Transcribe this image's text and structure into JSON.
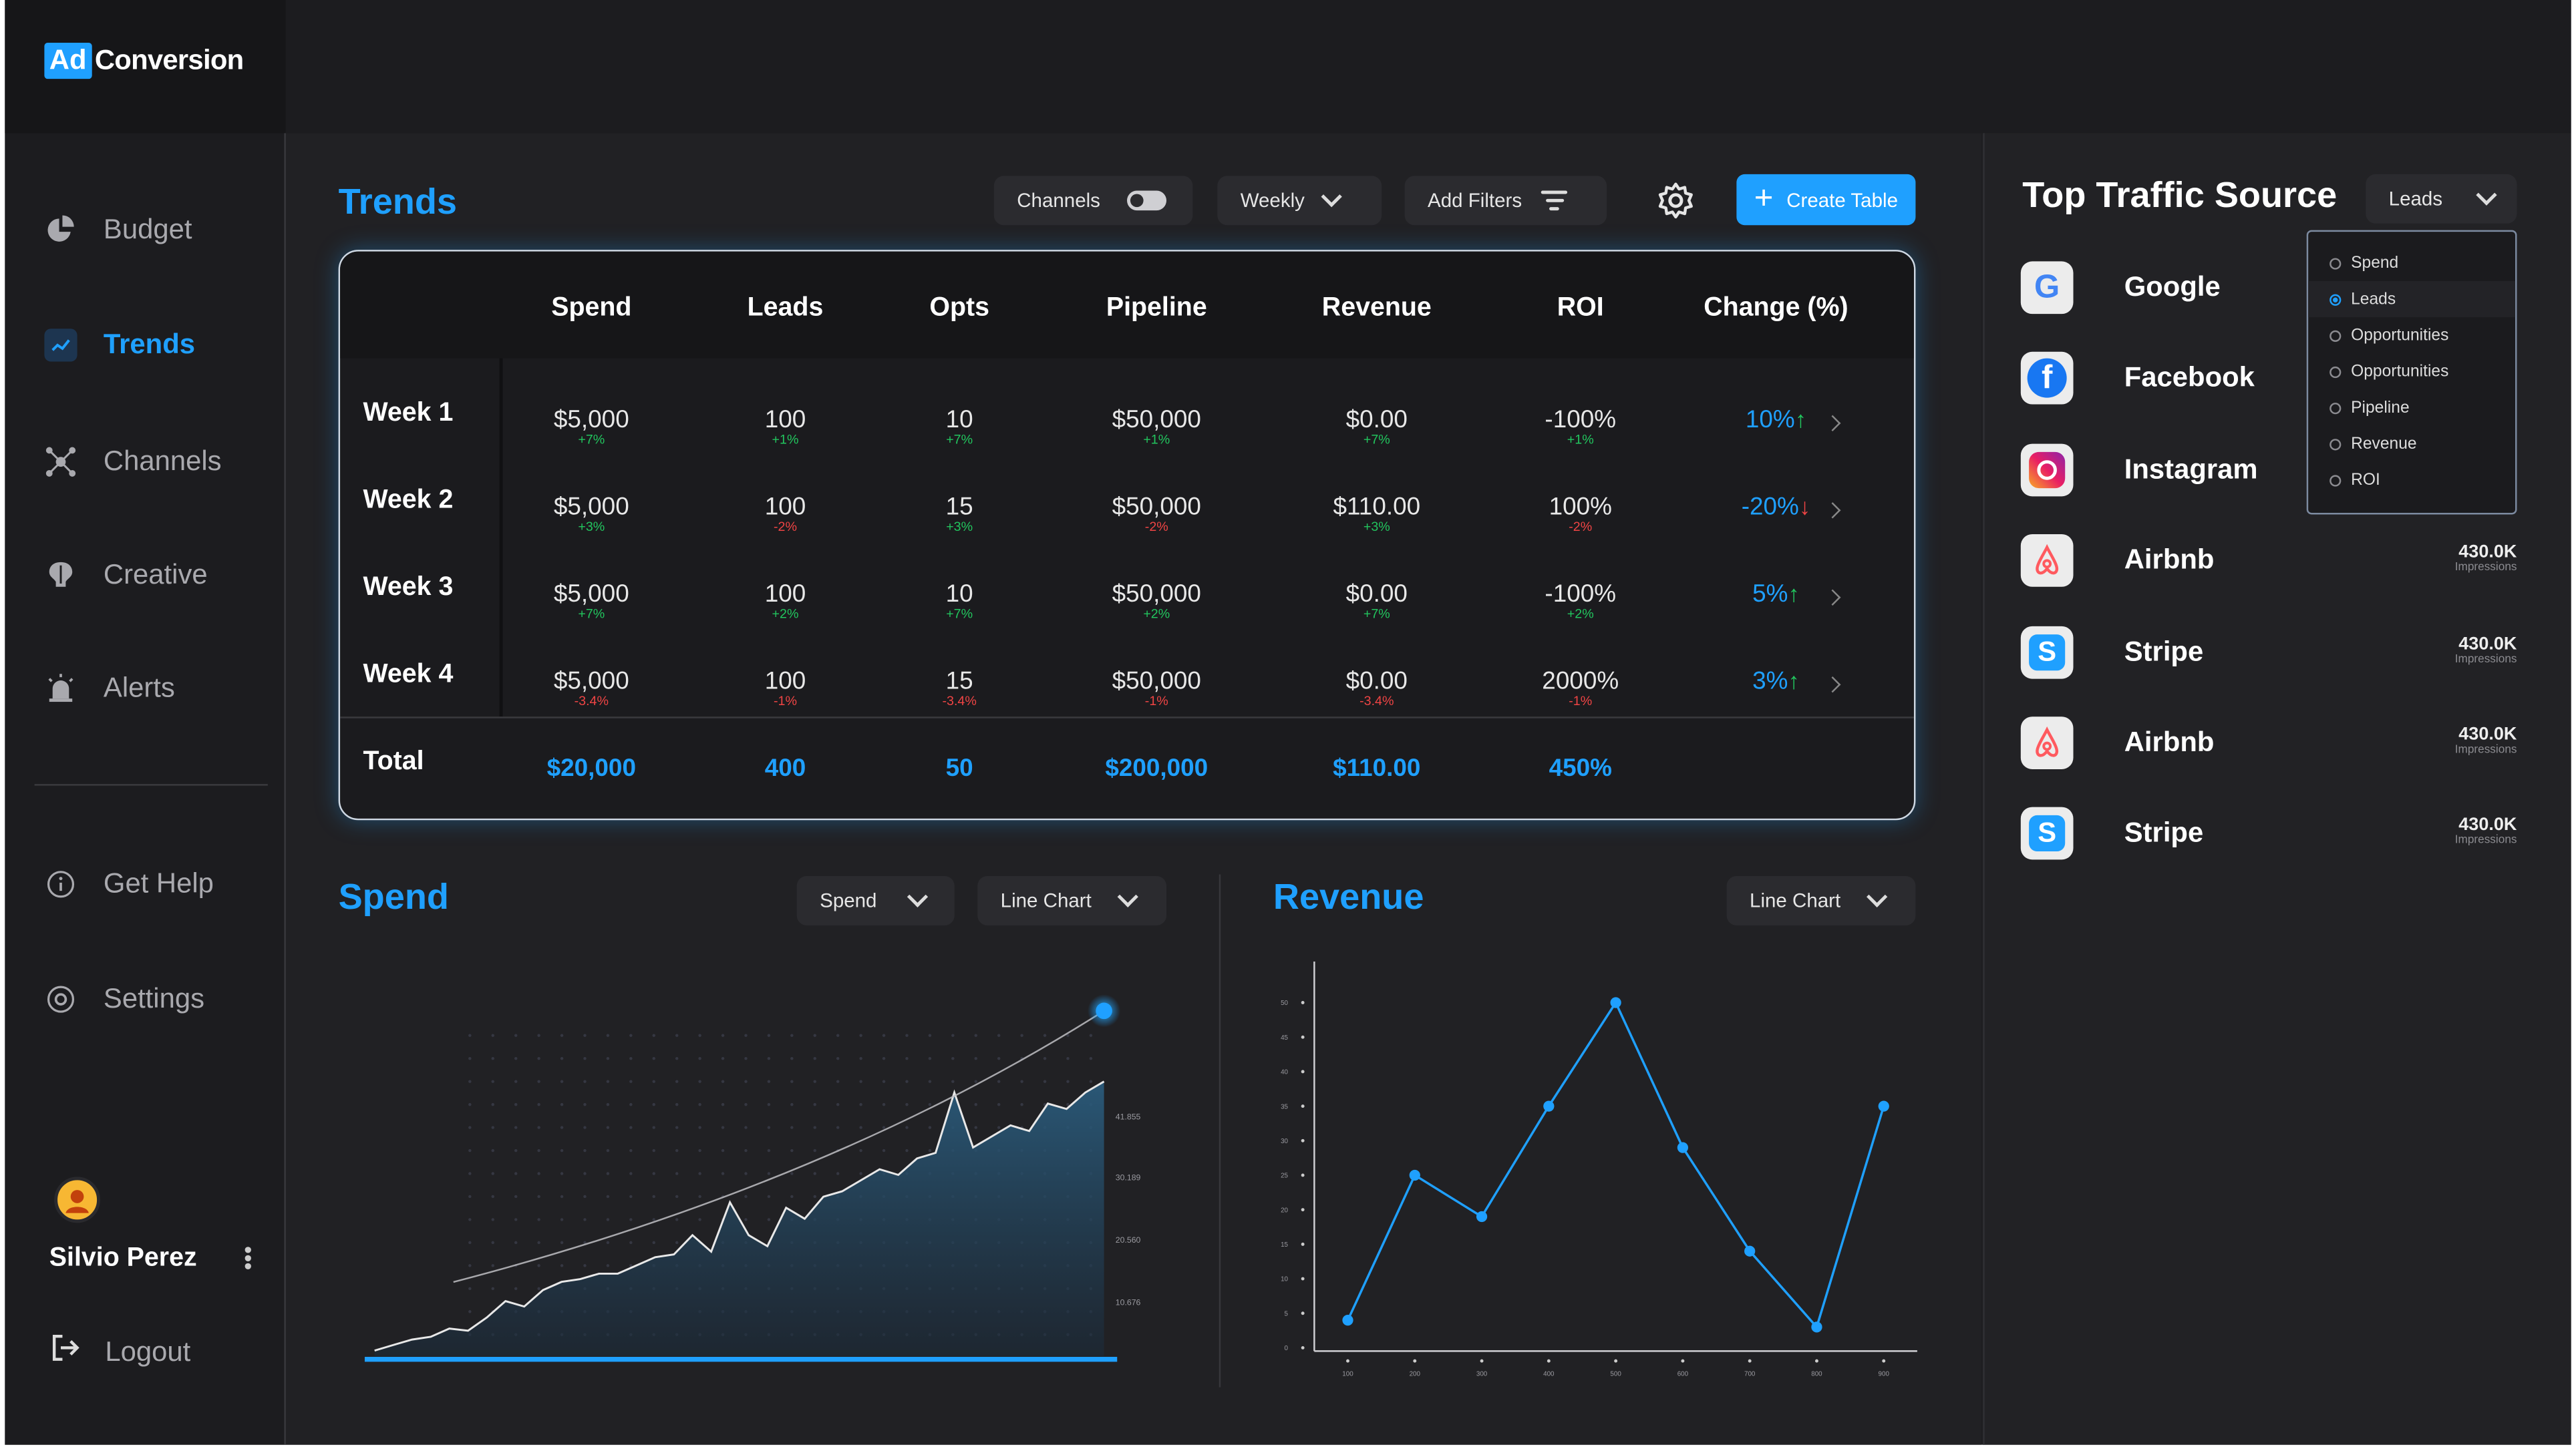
{
  "app": {
    "logo_ad": "Ad",
    "logo_name": "Conversion"
  },
  "sidebar": {
    "items": [
      {
        "label": "Budget",
        "icon": "pie-chart-icon"
      },
      {
        "label": "Trends",
        "icon": "trend-icon",
        "active": true
      },
      {
        "label": "Channels",
        "icon": "channels-icon"
      },
      {
        "label": "Creative",
        "icon": "brain-icon"
      },
      {
        "label": "Alerts",
        "icon": "siren-icon"
      }
    ],
    "help": "Get Help",
    "settings": "Settings",
    "user_name": "Silvio Perez",
    "logout": "Logout"
  },
  "trends": {
    "title": "Trends",
    "channels_label": "Channels",
    "period": "Weekly",
    "add_filters": "Add Filters",
    "create_table": "Create Table",
    "columns": [
      "Spend",
      "Leads",
      "Opts",
      "Pipeline",
      "Revenue",
      "ROI",
      "Change (%)"
    ],
    "rows": [
      {
        "label": "Week 1",
        "cells": [
          {
            "v": "$5,000",
            "d": "+7%",
            "up": true
          },
          {
            "v": "100",
            "d": "+1%",
            "up": true
          },
          {
            "v": "10",
            "d": "+7%",
            "up": true
          },
          {
            "v": "$50,000",
            "d": "+1%",
            "up": true
          },
          {
            "v": "$0.00",
            "d": "+7%",
            "up": true
          },
          {
            "v": "-100%",
            "d": "+1%",
            "up": true
          }
        ],
        "change": "10%",
        "change_up": true
      },
      {
        "label": "Week 2",
        "cells": [
          {
            "v": "$5,000",
            "d": "+3%",
            "up": true
          },
          {
            "v": "100",
            "d": "-2%",
            "up": false
          },
          {
            "v": "15",
            "d": "+3%",
            "up": true
          },
          {
            "v": "$50,000",
            "d": "-2%",
            "up": false
          },
          {
            "v": "$110.00",
            "d": "+3%",
            "up": true
          },
          {
            "v": "100%",
            "d": "-2%",
            "up": false
          }
        ],
        "change": "-20%",
        "change_up": false
      },
      {
        "label": "Week 3",
        "cells": [
          {
            "v": "$5,000",
            "d": "+7%",
            "up": true
          },
          {
            "v": "100",
            "d": "+2%",
            "up": true
          },
          {
            "v": "10",
            "d": "+7%",
            "up": true
          },
          {
            "v": "$50,000",
            "d": "+2%",
            "up": true
          },
          {
            "v": "$0.00",
            "d": "+7%",
            "up": true
          },
          {
            "v": "-100%",
            "d": "+2%",
            "up": true
          }
        ],
        "change": "5%",
        "change_up": true
      },
      {
        "label": "Week 4",
        "cells": [
          {
            "v": "$5,000",
            "d": "-3.4%",
            "up": false
          },
          {
            "v": "100",
            "d": "-1%",
            "up": false
          },
          {
            "v": "15",
            "d": "-3.4%",
            "up": false
          },
          {
            "v": "$50,000",
            "d": "-1%",
            "up": false
          },
          {
            "v": "$0.00",
            "d": "-3.4%",
            "up": false
          },
          {
            "v": "2000%",
            "d": "-1%",
            "up": false
          }
        ],
        "change": "3%",
        "change_up": true
      }
    ],
    "total_label": "Total",
    "totals": [
      "$20,000",
      "400",
      "50",
      "$200,000",
      "$110.00",
      "450%"
    ]
  },
  "spend_chart": {
    "title": "Spend",
    "metric_select": "Spend",
    "type_select": "Line Chart",
    "y_labels": [
      "41.855",
      "30.189",
      "20.560",
      "10.676"
    ]
  },
  "revenue_chart": {
    "title": "Revenue",
    "type_select": "Line Chart"
  },
  "chart_data": [
    {
      "type": "area",
      "title": "Spend",
      "y_ticks": [
        10.676,
        20.56,
        30.189,
        41.855
      ],
      "series": [
        {
          "values": [
            1,
            2,
            3,
            3.5,
            5,
            4.6,
            7,
            10,
            9,
            12,
            13.5,
            14,
            15,
            15,
            16.5,
            18,
            18.5,
            22,
            19,
            28,
            22,
            20,
            27,
            25,
            29,
            30,
            32,
            34,
            33,
            36,
            37,
            48,
            38,
            40,
            42,
            41,
            46,
            45,
            48,
            50
          ]
        }
      ]
    },
    {
      "type": "line",
      "title": "Revenue",
      "x": [
        100,
        200,
        300,
        400,
        500,
        600,
        700,
        800,
        900
      ],
      "y_ticks": [
        0,
        5,
        10,
        15,
        20,
        25,
        30,
        35,
        40,
        45,
        50
      ],
      "ylim": [
        0,
        50
      ],
      "series": [
        {
          "x": [
            100,
            200,
            300,
            400,
            500,
            600,
            700,
            800,
            900
          ],
          "values": [
            4,
            25,
            19,
            35,
            50,
            29,
            14,
            3,
            35
          ]
        }
      ]
    }
  ],
  "traffic": {
    "title": "Top Traffic Source",
    "select": "Leads",
    "sources": [
      {
        "name": "Google",
        "icon": "google-icon"
      },
      {
        "name": "Facebook",
        "icon": "facebook-icon"
      },
      {
        "name": "Instagram",
        "icon": "instagram-icon"
      },
      {
        "name": "Airbnb",
        "icon": "airbnb-icon",
        "value": "430.0K",
        "label": "Impressions"
      },
      {
        "name": "Stripe",
        "icon": "stripe-icon",
        "value": "430.0K",
        "label": "Impressions"
      },
      {
        "name": "Airbnb",
        "icon": "airbnb-icon",
        "value": "430.0K",
        "label": "Impressions"
      },
      {
        "name": "Stripe",
        "icon": "stripe-icon",
        "value": "430.0K",
        "label": "Impressions"
      }
    ],
    "dropdown_options": [
      "Spend",
      "Leads",
      "Opportunities",
      "Opportunities",
      "Pipeline",
      "Revenue",
      "ROI"
    ],
    "dropdown_selected": "Leads"
  },
  "colors": {
    "accent": "#1fa0ff",
    "positive": "#22c55e",
    "negative": "#ef4444",
    "background": "#1e1e21"
  }
}
